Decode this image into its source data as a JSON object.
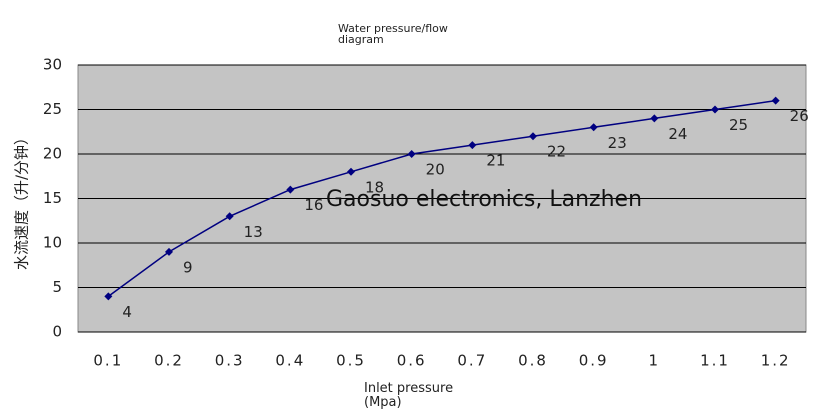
{
  "chart_data": {
    "type": "line",
    "title": "Water pressure/flow diagram",
    "x_label": "Inlet pressure (Mpa)",
    "y_label": "水流速度（升/分钟）",
    "annotation": "Gaosuo electronics, Lanzhen",
    "categories": [
      "0.1",
      "0.2",
      "0.3",
      "0.4",
      "0.5",
      "0.6",
      "0.7",
      "0.8",
      "0.9",
      "1",
      "1.1",
      "1.2"
    ],
    "values": [
      4,
      9,
      13,
      16,
      18,
      20,
      21,
      22,
      23,
      24,
      25,
      26
    ],
    "color": "#000080",
    "ylim": [
      0,
      30
    ],
    "yticks": [
      0,
      5,
      10,
      15,
      20,
      25,
      30
    ],
    "grid": true
  }
}
